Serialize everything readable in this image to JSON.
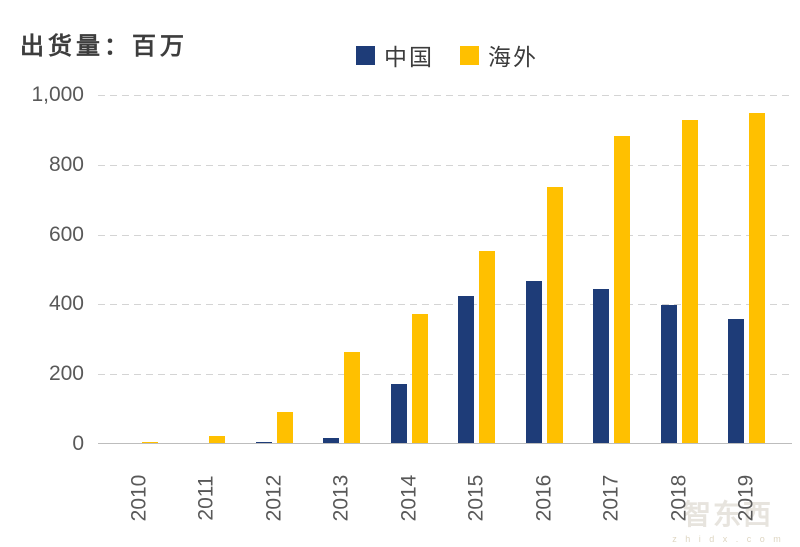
{
  "title": "出货量：百万",
  "legend": [
    {
      "label": "中国",
      "color": "#1e3c78"
    },
    {
      "label": "海外",
      "color": "#ffc000"
    }
  ],
  "watermark": {
    "logo": "智东西",
    "caption": "z h i d x . c o m"
  },
  "chart_data": {
    "type": "bar",
    "title": "出货量：百万",
    "categories": [
      "2010",
      "2011",
      "2012",
      "2013",
      "2014",
      "2015",
      "2016",
      "2017",
      "2018",
      "2019"
    ],
    "series": [
      {
        "name": "中国",
        "color": "#1e3c78",
        "values": [
          0,
          0,
          2,
          13,
          170,
          420,
          465,
          440,
          395,
          355
        ]
      },
      {
        "name": "海外",
        "color": "#ffc000",
        "values": [
          2,
          20,
          90,
          260,
          370,
          550,
          735,
          880,
          925,
          945
        ]
      }
    ],
    "xlabel": "",
    "ylabel": "",
    "ylim": [
      0,
      1000
    ],
    "yticks": [
      0,
      200,
      400,
      600,
      800,
      1000
    ],
    "grid": "horizontal-dashed",
    "legend_position": "top-center",
    "x_tick_rotation_deg": -90,
    "axis_label_color": "#595959"
  }
}
